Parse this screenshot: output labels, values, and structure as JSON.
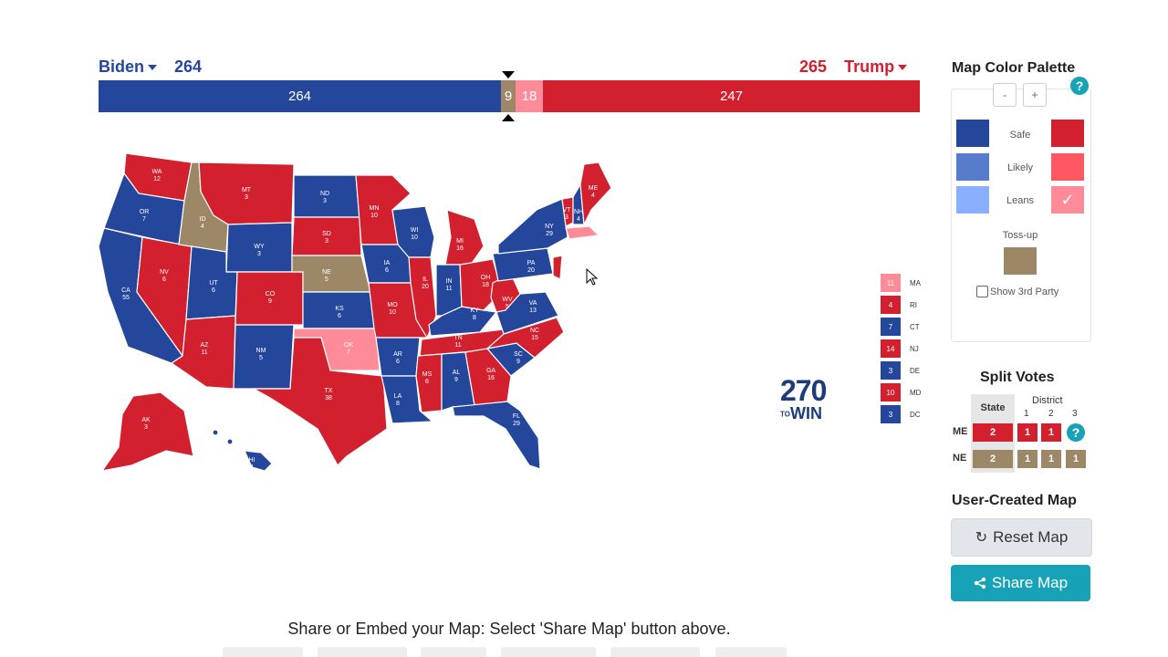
{
  "header": {
    "left_name": "Biden",
    "left_total": "264",
    "right_total": "265",
    "right_name": "Trump"
  },
  "bar": {
    "dem": "264",
    "tossup": "9",
    "lean_rep": "18",
    "rep": "247"
  },
  "colors": {
    "safe_dem": "#24479b",
    "likely_dem": "#577ccc",
    "lean_dem": "#8aafff",
    "tossup": "#9c8867",
    "lean_rep": "#ff8b98",
    "likely_rep": "#ff5865",
    "safe_rep": "#d3202f"
  },
  "states": {
    "WA": "12",
    "OR": "7",
    "CA": "55",
    "NV": "6",
    "ID": "4",
    "MT": "3",
    "WY": "3",
    "UT": "6",
    "AZ": "11",
    "CO": "9",
    "NM": "5",
    "ND": "3",
    "SD": "3",
    "NE": "5",
    "KS": "6",
    "OK": "7",
    "TX": "38",
    "MN": "10",
    "IA": "6",
    "MO": "10",
    "AR": "6",
    "LA": "8",
    "WI": "10",
    "IL": "20",
    "MI": "16",
    "IN": "11",
    "OH": "18",
    "KY": "8",
    "TN": "11",
    "MS": "6",
    "AL": "9",
    "GA": "16",
    "FL": "29",
    "SC": "9",
    "NC": "15",
    "VA": "13",
    "WV": "5",
    "PA": "20",
    "NY": "29",
    "VT": "3",
    "NH": "4",
    "ME": "4",
    "AK": "3",
    "HI": "4"
  },
  "small_states": [
    {
      "abbr": "MA",
      "ev": "11",
      "color": "#ff8b98"
    },
    {
      "abbr": "RI",
      "ev": "4",
      "color": "#d3202f"
    },
    {
      "abbr": "CT",
      "ev": "7",
      "color": "#24479b"
    },
    {
      "abbr": "NJ",
      "ev": "14",
      "color": "#d3202f"
    },
    {
      "abbr": "DE",
      "ev": "3",
      "color": "#24479b"
    },
    {
      "abbr": "MD",
      "ev": "10",
      "color": "#d3202f"
    },
    {
      "abbr": "DC",
      "ev": "3",
      "color": "#24479b"
    }
  ],
  "logo": {
    "top": "270",
    "bottom_small": "TO",
    "bottom": "WIN"
  },
  "palette": {
    "title": "Map Color Palette",
    "minus": "-",
    "plus": "+",
    "help": "?",
    "safe": "Safe",
    "likely": "Likely",
    "leans": "Leans",
    "check": "✓",
    "tossup": "Toss-up",
    "third_party": "Show 3rd Party"
  },
  "split": {
    "title": "Split Votes",
    "state_header": "State",
    "district_header": "District",
    "d1": "1",
    "d2": "2",
    "d3": "3",
    "me_label": "ME",
    "ne_label": "NE",
    "me_values": [
      "2",
      "1",
      "1"
    ],
    "ne_values": [
      "2",
      "1",
      "1",
      "1"
    ],
    "help": "?"
  },
  "user_map": {
    "title": "User-Created Map",
    "reset": "Reset Map",
    "share": "Share Map"
  },
  "footer": {
    "share_text": "Share or Embed your Map: Select 'Share Map' button above."
  }
}
